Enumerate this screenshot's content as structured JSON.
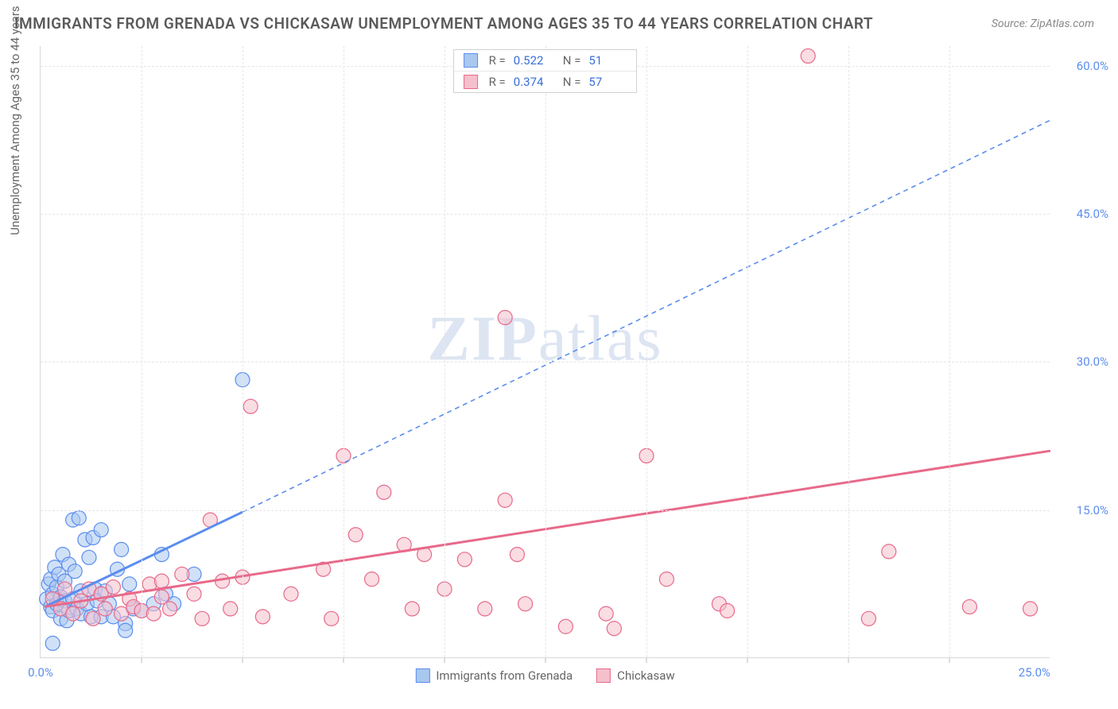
{
  "title": "IMMIGRANTS FROM GRENADA VS CHICKASAW UNEMPLOYMENT AMONG AGES 35 TO 44 YEARS CORRELATION CHART",
  "source": "Source: ZipAtlas.com",
  "y_axis_label": "Unemployment Among Ages 35 to 44 years",
  "watermark_a": "ZIP",
  "watermark_b": "atlas",
  "chart": {
    "type": "scatter",
    "background_color": "#ffffff",
    "grid_color": "#e6e6e6",
    "axis_color": "#d8d8d8",
    "tick_label_color": "#5b8def",
    "xlim": [
      0,
      25
    ],
    "ylim": [
      0,
      62
    ],
    "x_ticks_minor": [
      2.5,
      5,
      7.5,
      10,
      12.5,
      15,
      17.5,
      20,
      22.5
    ],
    "x_ticks_labeled": [
      {
        "v": 0,
        "label": "0.0%"
      },
      {
        "v": 25,
        "label": "25.0%"
      }
    ],
    "y_ticks_labeled": [
      {
        "v": 15,
        "label": "15.0%"
      },
      {
        "v": 30,
        "label": "30.0%"
      },
      {
        "v": 45,
        "label": "45.0%"
      },
      {
        "v": 60,
        "label": "60.0%"
      }
    ],
    "marker_radius": 9,
    "marker_opacity": 0.55,
    "series": [
      {
        "id": "grenada",
        "label": "Immigrants from Grenada",
        "color_fill": "#a9c8f0",
        "color_stroke": "#5b8def",
        "r_label": "R =",
        "r_value": "0.522",
        "n_label": "N =",
        "n_value": "51",
        "regression": {
          "solid": {
            "x1": 0.1,
            "y1": 5.2,
            "x2": 5.0,
            "y2": 14.8,
            "width": 3
          },
          "dashed": {
            "x1": 5.0,
            "y1": 14.8,
            "x2": 25.0,
            "y2": 54.5,
            "dash": "6,5",
            "width": 1.6
          }
        },
        "points": [
          [
            0.15,
            6.0
          ],
          [
            0.2,
            7.5
          ],
          [
            0.25,
            5.2
          ],
          [
            0.25,
            8.0
          ],
          [
            0.3,
            6.5
          ],
          [
            0.3,
            4.8
          ],
          [
            0.35,
            9.2
          ],
          [
            0.4,
            5.5
          ],
          [
            0.4,
            7.2
          ],
          [
            0.45,
            8.5
          ],
          [
            0.5,
            6.2
          ],
          [
            0.5,
            4.0
          ],
          [
            0.55,
            10.5
          ],
          [
            0.6,
            5.8
          ],
          [
            0.6,
            7.8
          ],
          [
            0.65,
            3.8
          ],
          [
            0.7,
            9.5
          ],
          [
            0.7,
            4.8
          ],
          [
            0.8,
            14.0
          ],
          [
            0.8,
            6.0
          ],
          [
            0.85,
            8.8
          ],
          [
            0.9,
            5.0
          ],
          [
            0.95,
            14.2
          ],
          [
            1.0,
            6.8
          ],
          [
            1.0,
            4.5
          ],
          [
            1.1,
            12.0
          ],
          [
            1.15,
            5.5
          ],
          [
            1.2,
            10.2
          ],
          [
            1.25,
            4.2
          ],
          [
            1.3,
            12.2
          ],
          [
            1.35,
            7.0
          ],
          [
            1.4,
            5.8
          ],
          [
            1.5,
            13.0
          ],
          [
            1.5,
            4.2
          ],
          [
            1.6,
            6.8
          ],
          [
            1.7,
            5.5
          ],
          [
            1.8,
            4.2
          ],
          [
            1.9,
            9.0
          ],
          [
            2.0,
            11.0
          ],
          [
            2.1,
            3.5
          ],
          [
            2.2,
            7.5
          ],
          [
            2.3,
            5.0
          ],
          [
            2.5,
            4.8
          ],
          [
            2.8,
            5.5
          ],
          [
            3.0,
            10.5
          ],
          [
            3.1,
            6.5
          ],
          [
            3.3,
            5.5
          ],
          [
            3.8,
            8.5
          ],
          [
            0.3,
            1.5
          ],
          [
            2.1,
            2.8
          ],
          [
            5.0,
            28.2
          ]
        ]
      },
      {
        "id": "chickasaw",
        "label": "Chickasaw",
        "color_fill": "#f5c0cc",
        "color_stroke": "#e76a8a",
        "r_label": "R =",
        "r_value": "0.374",
        "n_label": "N =",
        "n_value": "57",
        "regression": {
          "solid": {
            "x1": 0.1,
            "y1": 5.2,
            "x2": 25.0,
            "y2": 21.0,
            "width": 3
          }
        },
        "points": [
          [
            0.3,
            6.0
          ],
          [
            0.5,
            5.0
          ],
          [
            0.6,
            7.0
          ],
          [
            0.8,
            4.5
          ],
          [
            1.0,
            5.8
          ],
          [
            1.2,
            7.0
          ],
          [
            1.3,
            4.0
          ],
          [
            1.5,
            6.5
          ],
          [
            1.6,
            5.0
          ],
          [
            1.8,
            7.2
          ],
          [
            2.0,
            4.5
          ],
          [
            2.2,
            6.0
          ],
          [
            2.3,
            5.2
          ],
          [
            2.5,
            4.8
          ],
          [
            2.7,
            7.5
          ],
          [
            2.8,
            4.5
          ],
          [
            3.0,
            6.2
          ],
          [
            3.0,
            7.8
          ],
          [
            3.2,
            5.0
          ],
          [
            3.5,
            8.5
          ],
          [
            3.8,
            6.5
          ],
          [
            4.0,
            4.0
          ],
          [
            4.2,
            14.0
          ],
          [
            4.5,
            7.8
          ],
          [
            4.7,
            5.0
          ],
          [
            5.0,
            8.2
          ],
          [
            5.2,
            25.5
          ],
          [
            5.5,
            4.2
          ],
          [
            6.2,
            6.5
          ],
          [
            7.0,
            9.0
          ],
          [
            7.2,
            4.0
          ],
          [
            7.5,
            20.5
          ],
          [
            7.8,
            12.5
          ],
          [
            8.2,
            8.0
          ],
          [
            8.5,
            16.8
          ],
          [
            9.0,
            11.5
          ],
          [
            9.2,
            5.0
          ],
          [
            9.5,
            10.5
          ],
          [
            10.0,
            7.0
          ],
          [
            10.5,
            10.0
          ],
          [
            11.0,
            5.0
          ],
          [
            11.5,
            34.5
          ],
          [
            11.5,
            16.0
          ],
          [
            12.0,
            5.5
          ],
          [
            13.0,
            3.2
          ],
          [
            14.0,
            4.5
          ],
          [
            14.2,
            3.0
          ],
          [
            15.0,
            20.5
          ],
          [
            15.5,
            8.0
          ],
          [
            16.8,
            5.5
          ],
          [
            17.0,
            4.8
          ],
          [
            19.0,
            61.0
          ],
          [
            20.5,
            4.0
          ],
          [
            21.0,
            10.8
          ],
          [
            23.0,
            5.2
          ],
          [
            24.5,
            5.0
          ],
          [
            11.8,
            10.5
          ]
        ]
      }
    ]
  }
}
